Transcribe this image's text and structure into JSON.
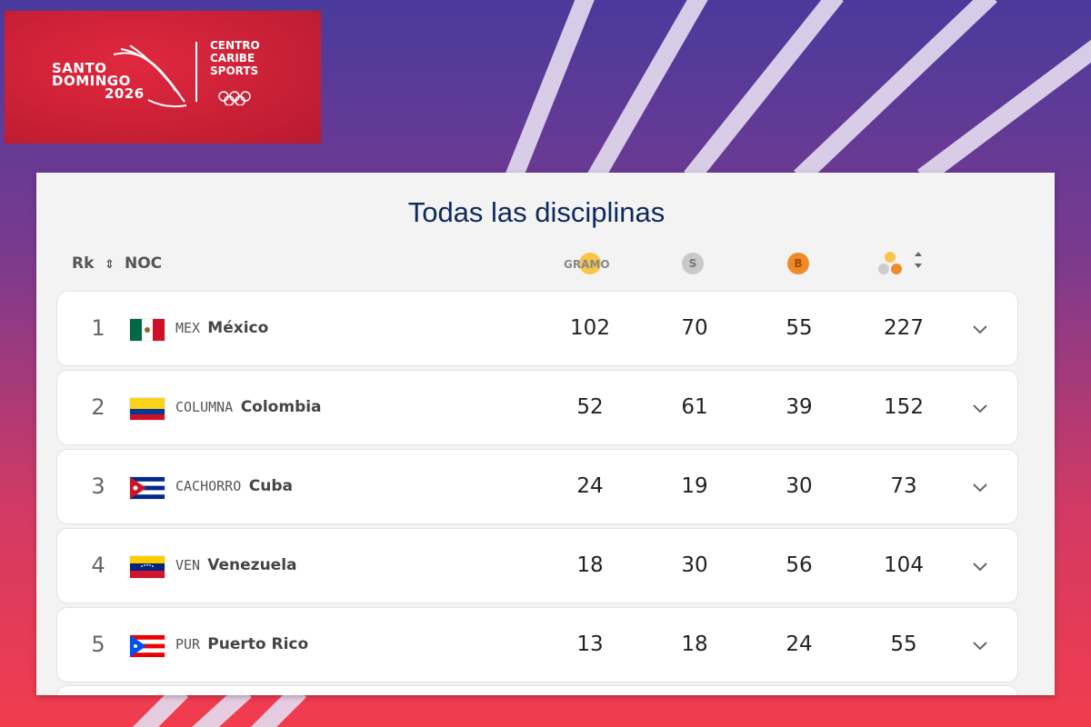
{
  "logo": {
    "event_line1": "SANTO",
    "event_line2": "DOMINGO",
    "event_year": "2026",
    "org_line1": "CENTRO",
    "org_line2": "CARIBE",
    "org_line3": "SPORTS"
  },
  "table": {
    "title": "Todas las disciplinas",
    "headers": {
      "rank": "Rk",
      "noc": "NOC",
      "gold": "GRAMO",
      "silver": "S",
      "bronze": "B"
    },
    "rows": [
      [
        1,
        "MEX",
        "México",
        102,
        70,
        55,
        227
      ],
      [
        2,
        "COLUMNA",
        "Colombia",
        52,
        61,
        39,
        152
      ],
      [
        3,
        "CACHORRO",
        "Cuba",
        24,
        19,
        30,
        73
      ],
      [
        4,
        "VEN",
        "Venezuela",
        18,
        30,
        56,
        104
      ],
      [
        5,
        "PUR",
        "Puerto Rico",
        13,
        18,
        24,
        55
      ]
    ]
  }
}
